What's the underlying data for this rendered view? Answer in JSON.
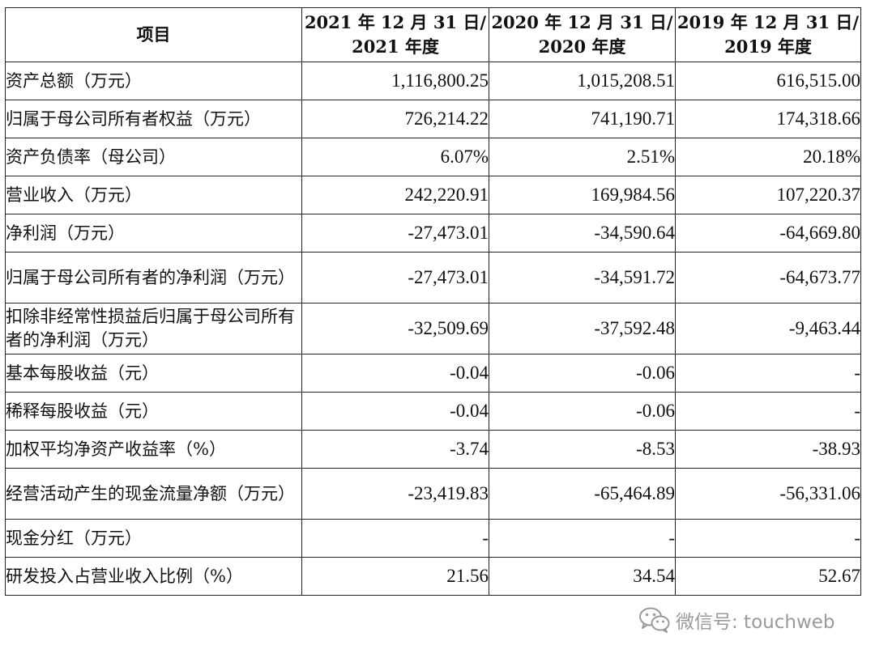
{
  "table": {
    "headers": [
      {
        "line1": "项目",
        "line2": ""
      },
      {
        "line1": "2021 年 12 月 31 日/",
        "line2": "2021 年度"
      },
      {
        "line1": "2020 年 12 月 31 日/",
        "line2": "2020 年度"
      },
      {
        "line1": "2019 年 12 月 31 日/",
        "line2": "2019 年度"
      }
    ],
    "rows": [
      {
        "label": "资产总额（万元）",
        "v2021": "1,116,800.25",
        "v2020": "1,015,208.51",
        "v2019": "616,515.00"
      },
      {
        "label": "归属于母公司所有者权益（万元）",
        "v2021": "726,214.22",
        "v2020": "741,190.71",
        "v2019": "174,318.66"
      },
      {
        "label": "资产负债率（母公司）",
        "v2021": "6.07%",
        "v2020": "2.51%",
        "v2019": "20.18%"
      },
      {
        "label": "营业收入（万元）",
        "v2021": "242,220.91",
        "v2020": "169,984.56",
        "v2019": "107,220.37"
      },
      {
        "label": "净利润（万元）",
        "v2021": "-27,473.01",
        "v2020": "-34,590.64",
        "v2019": "-64,669.80"
      },
      {
        "label": "归属于母公司所有者的净利润（万元）",
        "v2021": "-27,473.01",
        "v2020": "-34,591.72",
        "v2019": "-64,673.77"
      },
      {
        "label": "扣除非经常性损益后归属于母公司所有者的净利润（万元）",
        "v2021": "-32,509.69",
        "v2020": "-37,592.48",
        "v2019": "-9,463.44"
      },
      {
        "label": "基本每股收益（元）",
        "v2021": "-0.04",
        "v2020": "-0.06",
        "v2019": "-"
      },
      {
        "label": "稀释每股收益（元）",
        "v2021": "-0.04",
        "v2020": "-0.06",
        "v2019": "-"
      },
      {
        "label": "加权平均净资产收益率（%）",
        "v2021": "-3.74",
        "v2020": "-8.53",
        "v2019": "-38.93"
      },
      {
        "label": "经营活动产生的现金流量净额（万元）",
        "v2021": "-23,419.83",
        "v2020": "-65,464.89",
        "v2019": "-56,331.06"
      },
      {
        "label": "现金分红（万元）",
        "v2021": "-",
        "v2020": "-",
        "v2019": "-"
      },
      {
        "label": "研发投入占营业收入比例（%）",
        "v2021": "21.56",
        "v2020": "34.54",
        "v2019": "52.67"
      }
    ]
  },
  "watermark": {
    "text": "微信号: touchweb",
    "icon": "wechat-icon",
    "color": "#9a9a9a"
  }
}
